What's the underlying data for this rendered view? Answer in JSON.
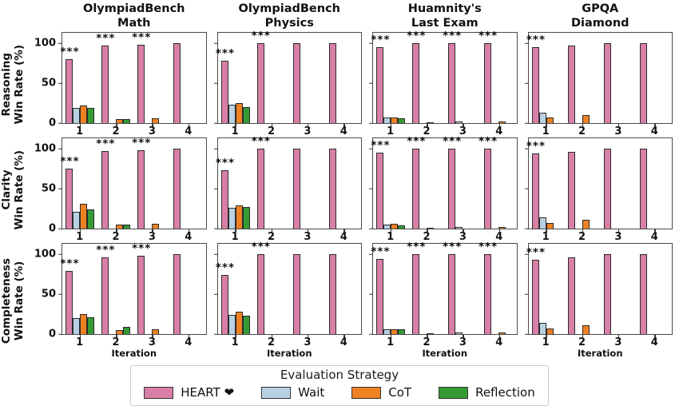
{
  "chart_data": {
    "type": "bar",
    "col_titles": [
      "OlympiadBench\nMath",
      "OlympiadBench\nPhysics",
      "Huamnity's\nLast Exam",
      "GPQA\nDiamond"
    ],
    "row_labels": [
      "Reasoning\nWin Rate (%)",
      "Clarity\nWin Rate (%)",
      "Completeness\nWin Rate (%)"
    ],
    "xlabel": "Iteration",
    "categories": [
      "1",
      "2",
      "3",
      "4"
    ],
    "yticks": [
      "0",
      "50",
      "100"
    ],
    "ylim": [
      0,
      113
    ],
    "significance_marker": "***",
    "legend": {
      "title": "Evaluation Strategy"
    },
    "series": [
      {
        "name": "HEART ❤",
        "color": "#d87fa8"
      },
      {
        "name": "Wait",
        "color": "#b8d1e2"
      },
      {
        "name": "CoT",
        "color": "#ee8122"
      },
      {
        "name": "Reflection",
        "color": "#349a34"
      }
    ],
    "grid": [
      {
        "row": "Reasoning",
        "cells": [
          {
            "col": "OlympiadBench Math",
            "groups": [
              [
                80,
                19,
                22,
                19
              ],
              [
                97,
                0,
                5,
                5
              ],
              [
                98,
                0,
                6,
                0
              ],
              [
                100,
                0,
                0,
                0
              ]
            ],
            "sig": [
              "***",
              "***",
              "***",
              ""
            ]
          },
          {
            "col": "OlympiadBench Physics",
            "groups": [
              [
                78,
                23,
                25,
                20
              ],
              [
                100,
                0,
                0,
                0
              ],
              [
                100,
                0,
                0,
                0
              ],
              [
                100,
                0,
                0,
                0
              ]
            ],
            "sig": [
              "***",
              "***",
              "",
              ""
            ]
          },
          {
            "col": "Huamnity's Last Exam",
            "groups": [
              [
                95,
                7,
                7,
                6
              ],
              [
                100,
                0,
                1,
                0
              ],
              [
                100,
                2,
                0,
                0
              ],
              [
                100,
                0,
                2,
                0
              ]
            ],
            "sig": [
              "***",
              "***",
              "***",
              "***"
            ]
          },
          {
            "col": "GPQA Diamond",
            "groups": [
              [
                95,
                13,
                7,
                0
              ],
              [
                97,
                0,
                10,
                0
              ],
              [
                100,
                0,
                0,
                0
              ],
              [
                100,
                0,
                0,
                0
              ]
            ],
            "sig": [
              "***",
              "",
              "",
              ""
            ]
          }
        ]
      },
      {
        "row": "Clarity",
        "cells": [
          {
            "col": "OlympiadBench Math",
            "groups": [
              [
                75,
                21,
                31,
                24
              ],
              [
                97,
                0,
                5,
                5
              ],
              [
                98,
                0,
                6,
                0
              ],
              [
                100,
                0,
                0,
                0
              ]
            ],
            "sig": [
              "***",
              "***",
              "***",
              ""
            ]
          },
          {
            "col": "OlympiadBench Physics",
            "groups": [
              [
                73,
                26,
                29,
                27
              ],
              [
                100,
                0,
                0,
                0
              ],
              [
                100,
                0,
                0,
                0
              ],
              [
                100,
                0,
                0,
                0
              ]
            ],
            "sig": [
              "***",
              "***",
              "",
              ""
            ]
          },
          {
            "col": "Huamnity's Last Exam",
            "groups": [
              [
                95,
                5,
                6,
                4
              ],
              [
                100,
                0,
                1,
                0
              ],
              [
                100,
                2,
                0,
                0
              ],
              [
                100,
                0,
                2,
                0
              ]
            ],
            "sig": [
              "***",
              "***",
              "***",
              "***"
            ]
          },
          {
            "col": "GPQA Diamond",
            "groups": [
              [
                94,
                14,
                7,
                0
              ],
              [
                96,
                0,
                11,
                0
              ],
              [
                100,
                0,
                0,
                0
              ],
              [
                100,
                0,
                0,
                0
              ]
            ],
            "sig": [
              "***",
              "",
              "",
              ""
            ]
          }
        ]
      },
      {
        "row": "Completeness",
        "cells": [
          {
            "col": "OlympiadBench Math",
            "groups": [
              [
                79,
                20,
                25,
                21
              ],
              [
                96,
                0,
                5,
                9
              ],
              [
                98,
                0,
                6,
                0
              ],
              [
                100,
                0,
                0,
                0
              ]
            ],
            "sig": [
              "***",
              "***",
              "***",
              ""
            ]
          },
          {
            "col": "OlympiadBench Physics",
            "groups": [
              [
                74,
                24,
                28,
                23
              ],
              [
                100,
                0,
                0,
                0
              ],
              [
                100,
                0,
                0,
                0
              ],
              [
                100,
                0,
                0,
                0
              ]
            ],
            "sig": [
              "***",
              "***",
              "",
              ""
            ]
          },
          {
            "col": "Huamnity's Last Exam",
            "groups": [
              [
                94,
                6,
                6,
                6
              ],
              [
                100,
                0,
                1,
                0
              ],
              [
                100,
                2,
                0,
                0
              ],
              [
                100,
                0,
                2,
                0
              ]
            ],
            "sig": [
              "***",
              "***",
              "***",
              "***"
            ]
          },
          {
            "col": "GPQA Diamond",
            "groups": [
              [
                93,
                14,
                7,
                0
              ],
              [
                96,
                0,
                11,
                0
              ],
              [
                100,
                0,
                0,
                0
              ],
              [
                100,
                0,
                0,
                0
              ]
            ],
            "sig": [
              "***",
              "",
              "",
              ""
            ]
          }
        ]
      }
    ]
  }
}
